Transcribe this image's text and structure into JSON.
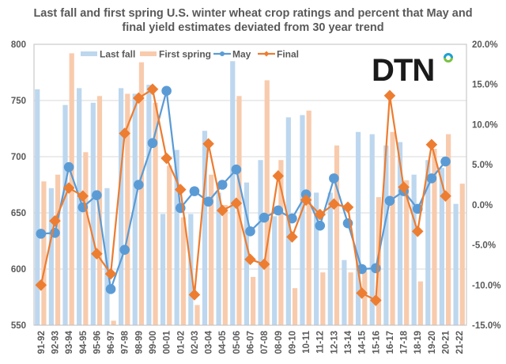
{
  "chart_data": {
    "type": "bar",
    "title_lines": [
      "Last fall and first spring U.S. winter wheat crop ratings and percent that May and",
      "final yield estimates deviated from 30 year trend"
    ],
    "xlabel": "",
    "ylabel": "",
    "y2label": "",
    "categories": [
      "91-92",
      "92-93",
      "93-94",
      "94-95",
      "95-96",
      "96-97",
      "97-98",
      "98-99",
      "99-00",
      "00-01",
      "01-02",
      "02-03",
      "03-04",
      "04-05",
      "05-06",
      "06-07",
      "07-08",
      "08-09",
      "09-10",
      "10-11",
      "11-12",
      "12-13",
      "13-14",
      "14-15",
      "15-16",
      "16-17",
      "17-18",
      "18-19",
      "19-20",
      "20-21",
      "21-22"
    ],
    "ylim": [
      550,
      800
    ],
    "yticks": [
      550,
      600,
      650,
      700,
      750,
      800
    ],
    "ytick_labels": [
      "550",
      "600",
      "650",
      "700",
      "750",
      "800"
    ],
    "y2lim": [
      -15,
      20
    ],
    "y2ticks": [
      -15,
      -10,
      -5,
      0,
      5,
      10,
      15,
      20
    ],
    "y2tick_labels": [
      "-15.0%",
      "-10.0%",
      "-5.0%",
      "0.0%",
      "5.0%",
      "10.0%",
      "15.0%",
      "20.0%"
    ],
    "grid": true,
    "legend_position": "top",
    "series": [
      {
        "name": "Last fall",
        "type": "bar",
        "axis": "left",
        "color": "#BDD7EE",
        "values": [
          760,
          672,
          746,
          761,
          748,
          672,
          761,
          756,
          764,
          649,
          706,
          649,
          723,
          668,
          785,
          677,
          697,
          647,
          735,
          737,
          668,
          668,
          608,
          722,
          720,
          710,
          713,
          684,
          697,
          690,
          658
        ]
      },
      {
        "name": "First spring",
        "type": "bar",
        "axis": "left",
        "color": "#F8CBAD",
        "values": [
          678,
          684,
          792,
          704,
          754,
          554,
          756,
          784,
          748,
          692,
          646,
          568,
          684,
          657,
          754,
          593,
          768,
          697,
          583,
          741,
          597,
          710,
          597,
          598,
          664,
          722,
          679,
          589,
          707,
          720,
          676
        ]
      },
      {
        "name": "May",
        "type": "line",
        "axis": "right",
        "marker": "circle",
        "color": "#5B9BD5",
        "values": [
          -3.6,
          -3.5,
          4.7,
          -0.3,
          1.2,
          -10.5,
          -5.6,
          2.5,
          7.7,
          14.2,
          -0.4,
          1.7,
          0.4,
          2.5,
          4.4,
          -3.3,
          -1.6,
          -0.7,
          -1.7,
          1.3,
          -2.6,
          3.3,
          -2.3,
          -8.0,
          -7.9,
          0.5,
          1.7,
          -0.5,
          3.3,
          5.4
        ]
      },
      {
        "name": "Final",
        "type": "line",
        "axis": "right",
        "marker": "diamond",
        "color": "#ED7D31",
        "values": [
          -10.0,
          -2.0,
          2.1,
          1.1,
          -6.1,
          -8.6,
          8.9,
          13.3,
          14.4,
          5.8,
          1.9,
          -11.2,
          7.6,
          -0.7,
          0.2,
          -6.8,
          -7.4,
          3.6,
          -4.0,
          0.6,
          -1.2,
          0.1,
          -0.3,
          -11.0,
          -11.9,
          13.6,
          2.2,
          -3.3,
          7.5,
          1.1
        ]
      }
    ]
  },
  "logo": {
    "text": "DTN",
    "ring_colors": [
      "#1BA1D8",
      "#7AC143"
    ]
  }
}
